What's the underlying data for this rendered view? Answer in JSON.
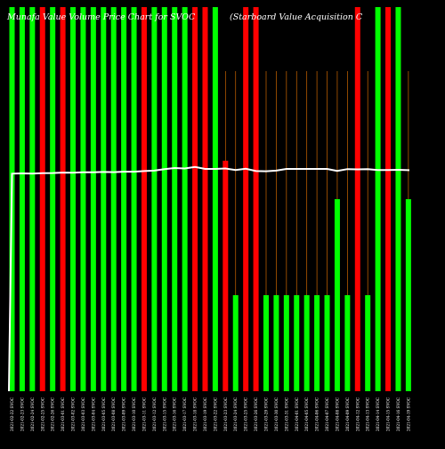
{
  "title_left": "Munafa Value Volume Price Chart for SVOC",
  "title_right": "(Starboard Value Acquisition C",
  "colors": {
    "background": "#000000",
    "up_bar": "#00ff00",
    "down_bar": "#ff0000",
    "price_line": "#ffffff",
    "vertical_guide": "#cc6600",
    "date_label": "#ffffff"
  },
  "chart_data": {
    "type": "bar",
    "title": "Munafa Value Volume Price Chart for SVOC",
    "subtitle": "(Starboard Value Acquisition C",
    "volume_max": 100,
    "categories": [
      "2021-02-22",
      "2021-02-23",
      "2021-02-24",
      "2021-02-25",
      "2021-02-26",
      "2021-03-01",
      "2021-03-02",
      "2021-03-03",
      "2021-03-04",
      "2021-03-05",
      "2021-03-08",
      "2021-03-09",
      "2021-03-10",
      "2021-03-11",
      "2021-03-12",
      "2021-03-15",
      "2021-03-16",
      "2021-03-17",
      "2021-03-18",
      "2021-03-19",
      "2021-03-22",
      "2021-03-23",
      "2021-03-24",
      "2021-03-25",
      "2021-03-26",
      "2021-03-29",
      "2021-03-30",
      "2021-03-31",
      "2021-04-01",
      "2021-04-05",
      "2021-04-06",
      "2021-04-07",
      "2021-04-08",
      "2021-04-09",
      "2021-04-12",
      "2021-04-13",
      "2021-04-14",
      "2021-04-15",
      "2021-04-16",
      "2021-04-19"
    ],
    "labels": [
      "2021-02-22 SVOC",
      "2021-02-23 SVOC",
      "2021-02-24 SVOC",
      "2021-02-25 SVOC",
      "2021-02-26 SVOC",
      "2021-03-01 SVOC",
      "2021-03-02 SVOC",
      "2021-03-03 SVOC",
      "2021-03-04 SVOC",
      "2021-03-05 SVOC",
      "2021-03-08 SVOC",
      "2021-03-09 SVOC",
      "2021-03-10 SVOC",
      "2021-03-11 SVOC",
      "2021-03-12 SVOC",
      "2021-03-15 SVOC",
      "2021-03-16 SVOC",
      "2021-03-17 SVOC",
      "2021-03-18 SVOC",
      "2021-03-19 SVOC",
      "2021-03-22 SVOC",
      "2021-03-23 SVOC",
      "2021-03-24 SVOC",
      "2021-03-25 SVOC",
      "2021-03-26 SVOC",
      "2021-03-29 SVOC",
      "2021-03-30 SVOC",
      "2021-03-31 SVOC",
      "2021-04-01 SVOC",
      "2021-04-05 SVOC",
      "2021-04-06 SVOC",
      "2021-04-07 SVOC",
      "2021-04-08 SVOC",
      "2021-04-09 SVOC",
      "2021-04-12 SVOC",
      "2021-04-13 SVOC",
      "2021-04-14 SVOC",
      "2021-04-15 SVOC",
      "2021-04-16 SVOC",
      "2021-04-19 SVOC"
    ],
    "volume": [
      100,
      100,
      100,
      100,
      100,
      100,
      100,
      100,
      100,
      100,
      100,
      100,
      100,
      100,
      100,
      100,
      100,
      100,
      100,
      100,
      100,
      60,
      25,
      100,
      100,
      25,
      25,
      25,
      25,
      25,
      25,
      25,
      50,
      25,
      100,
      25,
      100,
      100,
      100,
      50
    ],
    "direction": [
      "up",
      "up",
      "up",
      "down",
      "up",
      "down",
      "up",
      "up",
      "up",
      "up",
      "up",
      "up",
      "up",
      "down",
      "up",
      "up",
      "up",
      "up",
      "down",
      "down",
      "up",
      "down",
      "up",
      "down",
      "down",
      "up",
      "up",
      "up",
      "up",
      "up",
      "up",
      "up",
      "up",
      "up",
      "down",
      "up",
      "up",
      "down",
      "up",
      "up"
    ],
    "price": [
      9.78,
      9.79,
      9.78,
      9.8,
      9.81,
      9.83,
      9.82,
      9.84,
      9.84,
      9.86,
      9.85,
      9.87,
      9.87,
      9.9,
      9.92,
      9.99,
      10.04,
      10.02,
      10.09,
      10.0,
      10.0,
      10.02,
      9.95,
      10.01,
      9.9,
      9.89,
      9.92,
      10.0,
      10.0,
      10.0,
      10.0,
      10.0,
      9.91,
      9.99,
      9.98,
      9.99,
      9.95,
      9.95,
      9.96,
      9.94
    ],
    "price_range": [
      8.9,
      10.65
    ],
    "price_start": 8.25,
    "grid": false,
    "legend": "none"
  }
}
